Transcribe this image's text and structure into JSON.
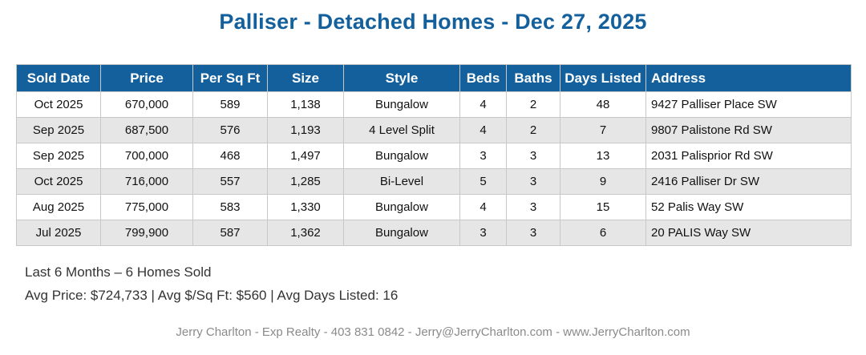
{
  "title": "Palliser - Detached Homes - Dec 27, 2025",
  "table": {
    "headers": [
      "Sold Date",
      "Price",
      "Per Sq Ft",
      "Size",
      "Style",
      "Beds",
      "Baths",
      "Days Listed",
      "Address"
    ],
    "rows": [
      [
        "Oct 2025",
        "670,000",
        "589",
        "1,138",
        "Bungalow",
        "4",
        "2",
        "48",
        "9427 Palliser Place SW"
      ],
      [
        "Sep 2025",
        "687,500",
        "576",
        "1,193",
        "4 Level Split",
        "4",
        "2",
        "7",
        "9807 Palistone Rd SW"
      ],
      [
        "Sep 2025",
        "700,000",
        "468",
        "1,497",
        "Bungalow",
        "3",
        "3",
        "13",
        "2031 Palisprior Rd SW"
      ],
      [
        "Oct 2025",
        "716,000",
        "557",
        "1,285",
        "Bi-Level",
        "5",
        "3",
        "9",
        "2416 Palliser Dr SW"
      ],
      [
        "Aug 2025",
        "775,000",
        "583",
        "1,330",
        "Bungalow",
        "4",
        "3",
        "15",
        "52 Palis Way SW"
      ],
      [
        "Jul 2025",
        "799,900",
        "587",
        "1,362",
        "Bungalow",
        "3",
        "3",
        "6",
        "20 PALIS Way SW"
      ]
    ]
  },
  "summary": {
    "line1": "Last 6 Months – 6 Homes Sold",
    "line2": "Avg Price: $724,733 | Avg $/Sq Ft: $560 | Avg Days Listed: 16"
  },
  "footer": "Jerry Charlton - Exp Realty - 403 831 0842 - Jerry@JerryCharlton.com - www.JerryCharlton.com",
  "colors": {
    "accent": "#13609c",
    "row_alt": "#e6e6e6"
  }
}
